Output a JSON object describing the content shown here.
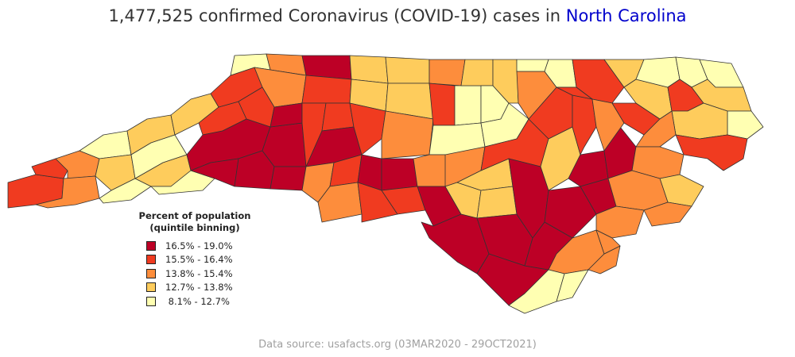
{
  "title": {
    "prefix": "1,477,525 confirmed Coronavirus (COVID-19) cases in ",
    "state": "North Carolina"
  },
  "legend": {
    "title_line1": "Percent of population",
    "title_line2": "(quintile binning)",
    "items": [
      {
        "label": "16.5% - 19.0%",
        "color": "#bd0026"
      },
      {
        "label": "15.5% - 16.4%",
        "color": "#f03b20"
      },
      {
        "label": "13.8% - 15.4%",
        "color": "#fd8d3c"
      },
      {
        "label": "12.7% - 13.8%",
        "color": "#fecc5c"
      },
      {
        "label": " 8.1% - 12.7%",
        "color": "#ffffb2"
      }
    ]
  },
  "source": "Data source: usafacts.org (03MAR2020 - 29OCT2021)",
  "colors": {
    "state_link": "#0000cc",
    "border": "#333333",
    "water": "#ffffff"
  }
}
